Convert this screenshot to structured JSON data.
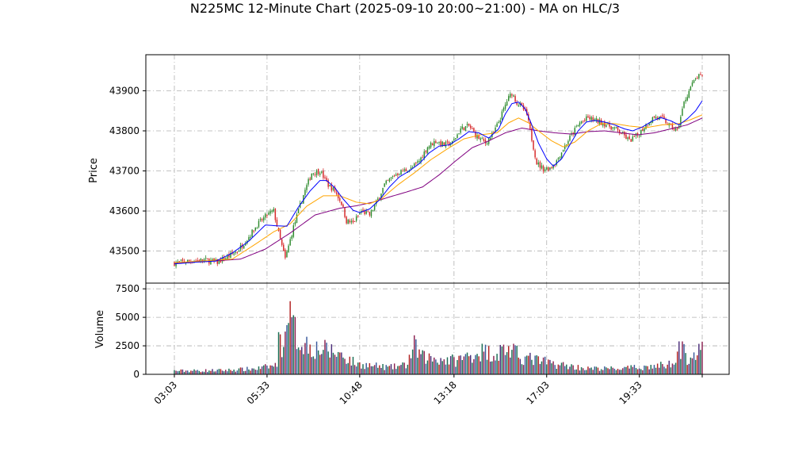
{
  "chart_data": {
    "type": "candlestick",
    "title": "N225MC 12-Minute Chart (2025-09-10 20:00~21:00) - MA on HLC/3",
    "price_panel": {
      "ylabel": "Price",
      "ylim": [
        43420,
        43990
      ],
      "yticks": [
        43500,
        43600,
        43700,
        43800,
        43900
      ]
    },
    "volume_panel": {
      "ylabel": "Volume",
      "ylim": [
        0,
        8000
      ],
      "yticks": [
        0,
        2500,
        5000,
        7500
      ]
    },
    "xaxis": {
      "labels": [
        "03:03",
        "05:33",
        "10:48",
        "13:18",
        "17:03",
        "19:33"
      ]
    },
    "close_path": [
      [
        0,
        43470
      ],
      [
        8,
        43475
      ],
      [
        18,
        43478
      ],
      [
        26,
        43472
      ],
      [
        32,
        43485
      ],
      [
        38,
        43500
      ],
      [
        44,
        43530
      ],
      [
        50,
        43565
      ],
      [
        56,
        43590
      ],
      [
        60,
        43600
      ],
      [
        63,
        43545
      ],
      [
        67,
        43480
      ],
      [
        72,
        43560
      ],
      [
        78,
        43640
      ],
      [
        83,
        43695
      ],
      [
        88,
        43700
      ],
      [
        93,
        43665
      ],
      [
        97,
        43650
      ],
      [
        101,
        43620
      ],
      [
        104,
        43575
      ],
      [
        108,
        43570
      ],
      [
        113,
        43600
      ],
      [
        118,
        43590
      ],
      [
        122,
        43620
      ],
      [
        127,
        43665
      ],
      [
        133,
        43690
      ],
      [
        138,
        43700
      ],
      [
        143,
        43705
      ],
      [
        148,
        43725
      ],
      [
        153,
        43760
      ],
      [
        158,
        43775
      ],
      [
        163,
        43765
      ],
      [
        168,
        43770
      ],
      [
        173,
        43805
      ],
      [
        178,
        43812
      ],
      [
        183,
        43785
      ],
      [
        188,
        43770
      ],
      [
        193,
        43795
      ],
      [
        197,
        43832
      ],
      [
        201,
        43875
      ],
      [
        204,
        43895
      ],
      [
        207,
        43870
      ],
      [
        210,
        43860
      ],
      [
        213,
        43840
      ],
      [
        216,
        43780
      ],
      [
        219,
        43720
      ],
      [
        223,
        43705
      ],
      [
        227,
        43708
      ],
      [
        231,
        43725
      ],
      [
        235,
        43755
      ],
      [
        240,
        43790
      ],
      [
        245,
        43820
      ],
      [
        250,
        43832
      ],
      [
        255,
        43825
      ],
      [
        260,
        43818
      ],
      [
        265,
        43808
      ],
      [
        270,
        43795
      ],
      [
        275,
        43775
      ],
      [
        280,
        43790
      ],
      [
        285,
        43815
      ],
      [
        290,
        43835
      ],
      [
        295,
        43830
      ],
      [
        300,
        43810
      ],
      [
        304,
        43800
      ],
      [
        308,
        43870
      ],
      [
        312,
        43910
      ],
      [
        316,
        43935
      ],
      [
        319,
        43935
      ]
    ],
    "ma_short_path": [
      [
        0,
        43468
      ],
      [
        15,
        43473
      ],
      [
        25,
        43475
      ],
      [
        35,
        43495
      ],
      [
        45,
        43525
      ],
      [
        55,
        43565
      ],
      [
        62,
        43563
      ],
      [
        68,
        43562
      ],
      [
        75,
        43610
      ],
      [
        82,
        43650
      ],
      [
        88,
        43676
      ],
      [
        92,
        43676
      ],
      [
        97,
        43658
      ],
      [
        102,
        43630
      ],
      [
        108,
        43602
      ],
      [
        112,
        43596
      ],
      [
        118,
        43605
      ],
      [
        124,
        43628
      ],
      [
        130,
        43660
      ],
      [
        136,
        43685
      ],
      [
        142,
        43700
      ],
      [
        148,
        43718
      ],
      [
        154,
        43745
      ],
      [
        160,
        43762
      ],
      [
        166,
        43765
      ],
      [
        172,
        43780
      ],
      [
        178,
        43798
      ],
      [
        184,
        43795
      ],
      [
        190,
        43782
      ],
      [
        196,
        43805
      ],
      [
        200,
        43842
      ],
      [
        204,
        43868
      ],
      [
        208,
        43872
      ],
      [
        212,
        43855
      ],
      [
        216,
        43815
      ],
      [
        220,
        43770
      ],
      [
        225,
        43730
      ],
      [
        229,
        43712
      ],
      [
        234,
        43730
      ],
      [
        239,
        43765
      ],
      [
        244,
        43800
      ],
      [
        249,
        43822
      ],
      [
        254,
        43826
      ],
      [
        260,
        43822
      ],
      [
        266,
        43815
      ],
      [
        272,
        43805
      ],
      [
        277,
        43800
      ],
      [
        283,
        43810
      ],
      [
        289,
        43825
      ],
      [
        294,
        43833
      ],
      [
        300,
        43825
      ],
      [
        305,
        43815
      ],
      [
        310,
        43830
      ],
      [
        315,
        43850
      ],
      [
        319,
        43875
      ]
    ],
    "ma_mid_path": [
      [
        0,
        43471
      ],
      [
        20,
        43476
      ],
      [
        35,
        43480
      ],
      [
        50,
        43520
      ],
      [
        60,
        43548
      ],
      [
        70,
        43568
      ],
      [
        80,
        43612
      ],
      [
        90,
        43638
      ],
      [
        100,
        43638
      ],
      [
        110,
        43622
      ],
      [
        118,
        43618
      ],
      [
        125,
        43630
      ],
      [
        135,
        43665
      ],
      [
        145,
        43695
      ],
      [
        155,
        43728
      ],
      [
        165,
        43755
      ],
      [
        175,
        43780
      ],
      [
        185,
        43790
      ],
      [
        195,
        43795
      ],
      [
        202,
        43820
      ],
      [
        208,
        43832
      ],
      [
        214,
        43820
      ],
      [
        220,
        43800
      ],
      [
        228,
        43775
      ],
      [
        235,
        43760
      ],
      [
        242,
        43772
      ],
      [
        250,
        43800
      ],
      [
        258,
        43818
      ],
      [
        266,
        43818
      ],
      [
        275,
        43812
      ],
      [
        285,
        43808
      ],
      [
        295,
        43815
      ],
      [
        305,
        43818
      ],
      [
        312,
        43828
      ],
      [
        319,
        43840
      ]
    ],
    "ma_long_path": [
      [
        0,
        43470
      ],
      [
        20,
        43474
      ],
      [
        40,
        43480
      ],
      [
        55,
        43505
      ],
      [
        70,
        43545
      ],
      [
        85,
        43590
      ],
      [
        100,
        43607
      ],
      [
        110,
        43613
      ],
      [
        120,
        43622
      ],
      [
        130,
        43635
      ],
      [
        140,
        43647
      ],
      [
        150,
        43660
      ],
      [
        160,
        43690
      ],
      [
        170,
        43725
      ],
      [
        180,
        43758
      ],
      [
        190,
        43775
      ],
      [
        200,
        43795
      ],
      [
        210,
        43807
      ],
      [
        220,
        43800
      ],
      [
        230,
        43795
      ],
      [
        240,
        43792
      ],
      [
        250,
        43798
      ],
      [
        260,
        43800
      ],
      [
        270,
        43795
      ],
      [
        280,
        43790
      ],
      [
        290,
        43795
      ],
      [
        300,
        43805
      ],
      [
        310,
        43815
      ],
      [
        319,
        43832
      ]
    ],
    "volume_path": [
      [
        0,
        300
      ],
      [
        30,
        350
      ],
      [
        50,
        500
      ],
      [
        62,
        800
      ],
      [
        63,
        6500
      ],
      [
        64,
        2500
      ],
      [
        67,
        3000
      ],
      [
        68,
        7300
      ],
      [
        70,
        4700
      ],
      [
        75,
        3000
      ],
      [
        85,
        2300
      ],
      [
        95,
        2000
      ],
      [
        100,
        1800
      ],
      [
        110,
        900
      ],
      [
        130,
        600
      ],
      [
        140,
        800
      ],
      [
        145,
        2400
      ],
      [
        150,
        1500
      ],
      [
        170,
        1200
      ],
      [
        185,
        2000
      ],
      [
        195,
        1800
      ],
      [
        200,
        2300
      ],
      [
        210,
        1500
      ],
      [
        230,
        900
      ],
      [
        250,
        500
      ],
      [
        270,
        500
      ],
      [
        290,
        700
      ],
      [
        300,
        900
      ],
      [
        305,
        2400
      ],
      [
        310,
        1500
      ],
      [
        319,
        2000
      ]
    ]
  }
}
